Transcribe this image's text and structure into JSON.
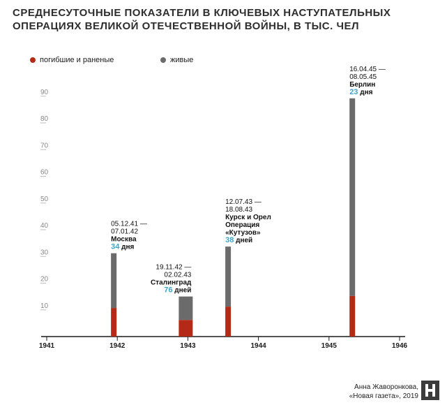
{
  "title_lines": [
    "СРЕДНЕСУТОЧНЫЕ ПОКАЗАТЕЛИ В КЛЮЧЕВЫХ НАСТУПАТЕЛЬНЫХ",
    "ОПЕРАЦИЯХ ВЕЛИКОЙ ОТЕЧЕСТВЕННОЙ ВОЙНЫ, В ТЫС. ЧЕЛ"
  ],
  "credit": {
    "author": "Анна Жаворонкова,",
    "source": "«Новая газета», 2019"
  },
  "colors": {
    "casualties": "#b52a17",
    "alive": "#6b6b6b",
    "accent": "#3aa6c9",
    "axis": "#1a1a1a",
    "tick": "#bdbdbd"
  },
  "chart_data": {
    "type": "bar",
    "stacked": true,
    "title": "Среднесуточные показатели в ключевых наступательных операциях Великой Отечественной войны, в тыс. чел",
    "xlabel": "",
    "ylabel": "",
    "xlim": [
      1941,
      1946
    ],
    "ylim": [
      0,
      95
    ],
    "x_ticks": [
      "1941",
      "1942",
      "1943",
      "1944",
      "1945",
      "1946"
    ],
    "y_ticks": [
      "10",
      "20",
      "30",
      "40",
      "50",
      "60",
      "70",
      "80",
      "90"
    ],
    "legend": [
      "погибшие и раненые",
      "живые"
    ],
    "legend_position": "top-left",
    "operations": [
      {
        "x": 1941.95,
        "casualties": 10.7,
        "alive": 20.5,
        "total": 31.2,
        "label_lines": [
          "05.12.41 —",
          "07.01.42",
          "Москва"
        ],
        "days": "34",
        "days_unit": " дня",
        "label_align": "left"
      },
      {
        "x": 1942.97,
        "casualties": 6.2,
        "alive": 8.8,
        "total": 15.0,
        "label_lines": [
          "19.11.42 —",
          "02.02.43",
          "Сталинград"
        ],
        "days": "76",
        "days_unit": " дней",
        "label_align": "right"
      },
      {
        "x": 1943.57,
        "casualties": 11.2,
        "alive": 22.5,
        "total": 33.7,
        "label_lines": [
          "12.07.43 —",
          "18.08.43",
          "Курск и Орел",
          "Операция",
          "«Кутузов»"
        ],
        "days": "38",
        "days_unit": " дней",
        "label_align": "left"
      },
      {
        "x": 1945.33,
        "casualties": 15.2,
        "alive": 74.0,
        "total": 89.2,
        "label_lines": [
          "16.04.45 —",
          "08.05.45",
          "Берлин"
        ],
        "days": "23",
        "days_unit": " дня",
        "label_align": "left"
      }
    ]
  }
}
